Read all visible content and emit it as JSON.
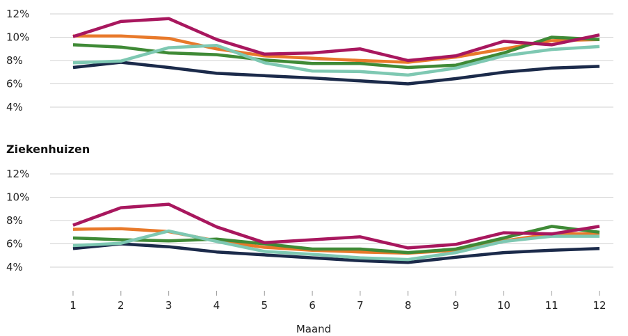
{
  "chart_data": [
    {
      "type": "line",
      "title": "",
      "xlabel": "",
      "ylabel": "",
      "ylim": [
        4,
        12
      ],
      "y_ticks": [
        "4%",
        "6%",
        "8%",
        "10%",
        "12%"
      ],
      "x": [
        1,
        2,
        3,
        4,
        5,
        6,
        7,
        8,
        9,
        10,
        11,
        12
      ],
      "grid": true,
      "series": [
        {
          "color": "#1b2a4a",
          "values": [
            7.4,
            7.85,
            7.4,
            6.9,
            6.7,
            6.5,
            6.25,
            6.0,
            6.45,
            7.0,
            7.35,
            7.5
          ]
        },
        {
          "color": "#e8792a",
          "values": [
            10.1,
            10.1,
            9.9,
            9.0,
            8.4,
            8.2,
            8.0,
            7.85,
            8.3,
            9.0,
            9.7,
            9.8
          ]
        },
        {
          "color": "#3f8a36",
          "values": [
            9.35,
            9.15,
            8.65,
            8.5,
            8.05,
            7.75,
            7.75,
            7.4,
            7.6,
            8.65,
            10.0,
            9.8
          ]
        },
        {
          "color": "#7ec8b2",
          "values": [
            7.8,
            7.95,
            9.1,
            9.3,
            7.8,
            7.1,
            7.05,
            6.75,
            7.35,
            8.4,
            8.95,
            9.2
          ]
        },
        {
          "color": "#a8175e",
          "values": [
            10.05,
            11.35,
            11.6,
            9.8,
            8.55,
            8.65,
            9.0,
            8.0,
            8.4,
            9.65,
            9.35,
            10.2
          ]
        }
      ]
    },
    {
      "type": "line",
      "title": "Ziekenhuizen",
      "xlabel": "Maand",
      "ylabel": "",
      "ylim": [
        4,
        12
      ],
      "y_ticks": [
        "4%",
        "6%",
        "8%",
        "10%",
        "12%"
      ],
      "x": [
        1,
        2,
        3,
        4,
        5,
        6,
        7,
        8,
        9,
        10,
        11,
        12
      ],
      "x_ticks": [
        "1",
        "2",
        "3",
        "4",
        "5",
        "6",
        "7",
        "8",
        "9",
        "10",
        "11",
        "12"
      ],
      "grid": true,
      "series": [
        {
          "color": "#1b2a4a",
          "values": [
            5.6,
            6.0,
            5.75,
            5.3,
            5.05,
            4.8,
            4.55,
            4.4,
            4.85,
            5.25,
            5.45,
            5.6
          ]
        },
        {
          "color": "#e8792a",
          "values": [
            7.25,
            7.3,
            7.05,
            6.25,
            5.7,
            5.45,
            5.3,
            5.2,
            5.45,
            6.25,
            6.85,
            6.85
          ]
        },
        {
          "color": "#3f8a36",
          "values": [
            6.5,
            6.35,
            6.25,
            6.4,
            6.0,
            5.55,
            5.55,
            5.25,
            5.55,
            6.5,
            7.5,
            7.0
          ]
        },
        {
          "color": "#7ec8b2",
          "values": [
            5.85,
            6.05,
            7.1,
            6.2,
            5.35,
            5.1,
            4.8,
            4.65,
            5.25,
            6.2,
            6.65,
            6.65
          ]
        },
        {
          "color": "#a8175e",
          "values": [
            7.6,
            9.1,
            9.4,
            7.45,
            6.1,
            6.35,
            6.6,
            5.65,
            5.95,
            6.95,
            6.85,
            7.5
          ]
        }
      ]
    }
  ]
}
